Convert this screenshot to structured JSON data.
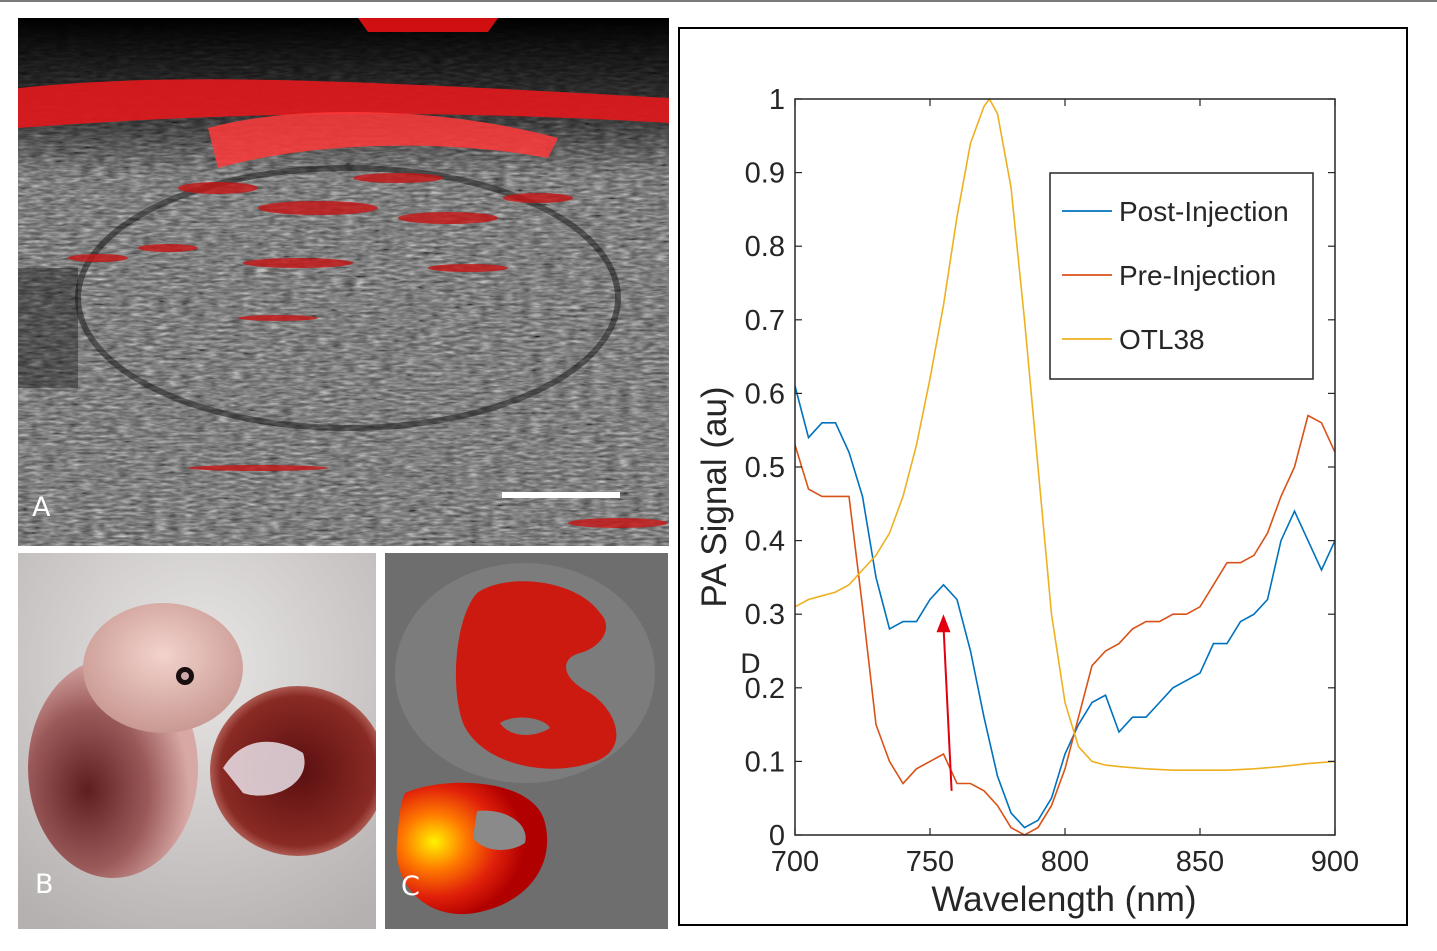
{
  "panels": {
    "a": {
      "label": "A"
    },
    "b": {
      "label": "B"
    },
    "c": {
      "label": "C"
    },
    "d": {
      "label": "D"
    }
  },
  "colors": {
    "post_injection": "#0072bd",
    "pre_injection": "#d95319",
    "otl38": "#edb120",
    "arrow": "#e0000f"
  },
  "chart_data": {
    "type": "line",
    "title": "",
    "xlabel": "Wavelength (nm)",
    "ylabel": "PA Signal (au)",
    "xlim": [
      700,
      900
    ],
    "ylim": [
      0,
      1
    ],
    "xticks": [
      "700",
      "750",
      "800",
      "850",
      "900"
    ],
    "yticks": [
      "0",
      "0.1",
      "0.2",
      "0.3",
      "0.4",
      "0.5",
      "0.6",
      "0.7",
      "0.8",
      "0.9",
      "1"
    ],
    "grid": false,
    "legend": {
      "placement": "top-right",
      "entries": [
        "Post-Injection",
        "Pre-Injection",
        "OTL38"
      ]
    },
    "annotation": {
      "type": "arrow",
      "from": [
        758,
        0.06
      ],
      "to": [
        755,
        0.3
      ]
    },
    "series": [
      {
        "name": "Post-Injection",
        "x": [
          700,
          705,
          710,
          715,
          720,
          725,
          730,
          735,
          740,
          745,
          750,
          755,
          760,
          765,
          770,
          775,
          780,
          785,
          790,
          795,
          800,
          805,
          810,
          815,
          820,
          825,
          830,
          835,
          840,
          845,
          850,
          855,
          860,
          865,
          870,
          875,
          880,
          885,
          890,
          895,
          900
        ],
        "y": [
          0.61,
          0.54,
          0.56,
          0.56,
          0.52,
          0.46,
          0.35,
          0.28,
          0.29,
          0.29,
          0.32,
          0.34,
          0.32,
          0.25,
          0.16,
          0.08,
          0.03,
          0.01,
          0.02,
          0.05,
          0.11,
          0.15,
          0.18,
          0.19,
          0.14,
          0.16,
          0.16,
          0.18,
          0.2,
          0.21,
          0.22,
          0.26,
          0.26,
          0.29,
          0.3,
          0.32,
          0.4,
          0.44,
          0.4,
          0.36,
          0.4
        ]
      },
      {
        "name": "Pre-Injection",
        "x": [
          700,
          705,
          710,
          715,
          720,
          725,
          730,
          735,
          740,
          745,
          750,
          755,
          760,
          765,
          770,
          775,
          780,
          785,
          790,
          795,
          800,
          805,
          810,
          815,
          820,
          825,
          830,
          835,
          840,
          845,
          850,
          855,
          860,
          865,
          870,
          875,
          880,
          885,
          890,
          895,
          900
        ],
        "y": [
          0.53,
          0.47,
          0.46,
          0.46,
          0.46,
          0.31,
          0.15,
          0.1,
          0.07,
          0.09,
          0.1,
          0.11,
          0.07,
          0.07,
          0.06,
          0.04,
          0.01,
          0.0,
          0.01,
          0.04,
          0.09,
          0.16,
          0.23,
          0.25,
          0.26,
          0.28,
          0.29,
          0.29,
          0.3,
          0.3,
          0.31,
          0.34,
          0.37,
          0.37,
          0.38,
          0.41,
          0.46,
          0.5,
          0.57,
          0.56,
          0.52
        ]
      },
      {
        "name": "OTL38",
        "x": [
          700,
          705,
          710,
          715,
          720,
          725,
          730,
          735,
          740,
          745,
          750,
          755,
          760,
          765,
          770,
          772,
          775,
          780,
          785,
          790,
          795,
          800,
          805,
          810,
          815,
          820,
          830,
          840,
          850,
          860,
          870,
          880,
          890,
          900
        ],
        "y": [
          0.31,
          0.32,
          0.325,
          0.33,
          0.34,
          0.36,
          0.38,
          0.41,
          0.46,
          0.53,
          0.62,
          0.72,
          0.84,
          0.94,
          0.99,
          1.0,
          0.98,
          0.88,
          0.7,
          0.5,
          0.3,
          0.18,
          0.12,
          0.1,
          0.095,
          0.093,
          0.09,
          0.088,
          0.088,
          0.088,
          0.09,
          0.093,
          0.097,
          0.1
        ]
      }
    ]
  }
}
